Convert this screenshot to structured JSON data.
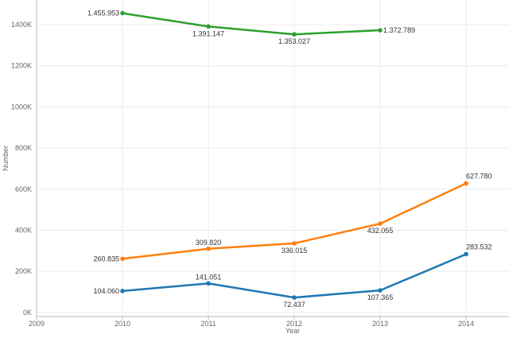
{
  "chart_data": {
    "type": "line",
    "title": "",
    "xlabel": "Year",
    "ylabel": "Number",
    "x_ticks": [
      "2009",
      "2010",
      "2011",
      "2012",
      "2013",
      "2014"
    ],
    "y_ticks": [
      "0K",
      "200K",
      "400K",
      "600K",
      "800K",
      "1000K",
      "1200K",
      "1400K"
    ],
    "xlim": [
      2009,
      2014.5
    ],
    "ylim": [
      -20000,
      1520000
    ],
    "grid": true,
    "series": [
      {
        "color": "#2ca02c",
        "points": [
          {
            "x": 2010,
            "y": 1455953,
            "label": "1.455.953"
          },
          {
            "x": 2011,
            "y": 1391147,
            "label": "1.391.147"
          },
          {
            "x": 2012,
            "y": 1353027,
            "label": "1.353.027"
          },
          {
            "x": 2013,
            "y": 1372789,
            "label": "1.372.789"
          }
        ]
      },
      {
        "color": "#ff7f0e",
        "points": [
          {
            "x": 2010,
            "y": 260835,
            "label": "260.835"
          },
          {
            "x": 2011,
            "y": 309820,
            "label": "309.820"
          },
          {
            "x": 2012,
            "y": 336015,
            "label": "336.015"
          },
          {
            "x": 2013,
            "y": 432055,
            "label": "432.055"
          },
          {
            "x": 2014,
            "y": 627780,
            "label": "627.780"
          }
        ]
      },
      {
        "color": "#1f77b4",
        "points": [
          {
            "x": 2010,
            "y": 104060,
            "label": "104.060"
          },
          {
            "x": 2011,
            "y": 141051,
            "label": "141.051"
          },
          {
            "x": 2012,
            "y": 72437,
            "label": "72.437"
          },
          {
            "x": 2013,
            "y": 107365,
            "label": "107.365"
          },
          {
            "x": 2014,
            "y": 283532,
            "label": "283.532"
          }
        ]
      }
    ]
  }
}
